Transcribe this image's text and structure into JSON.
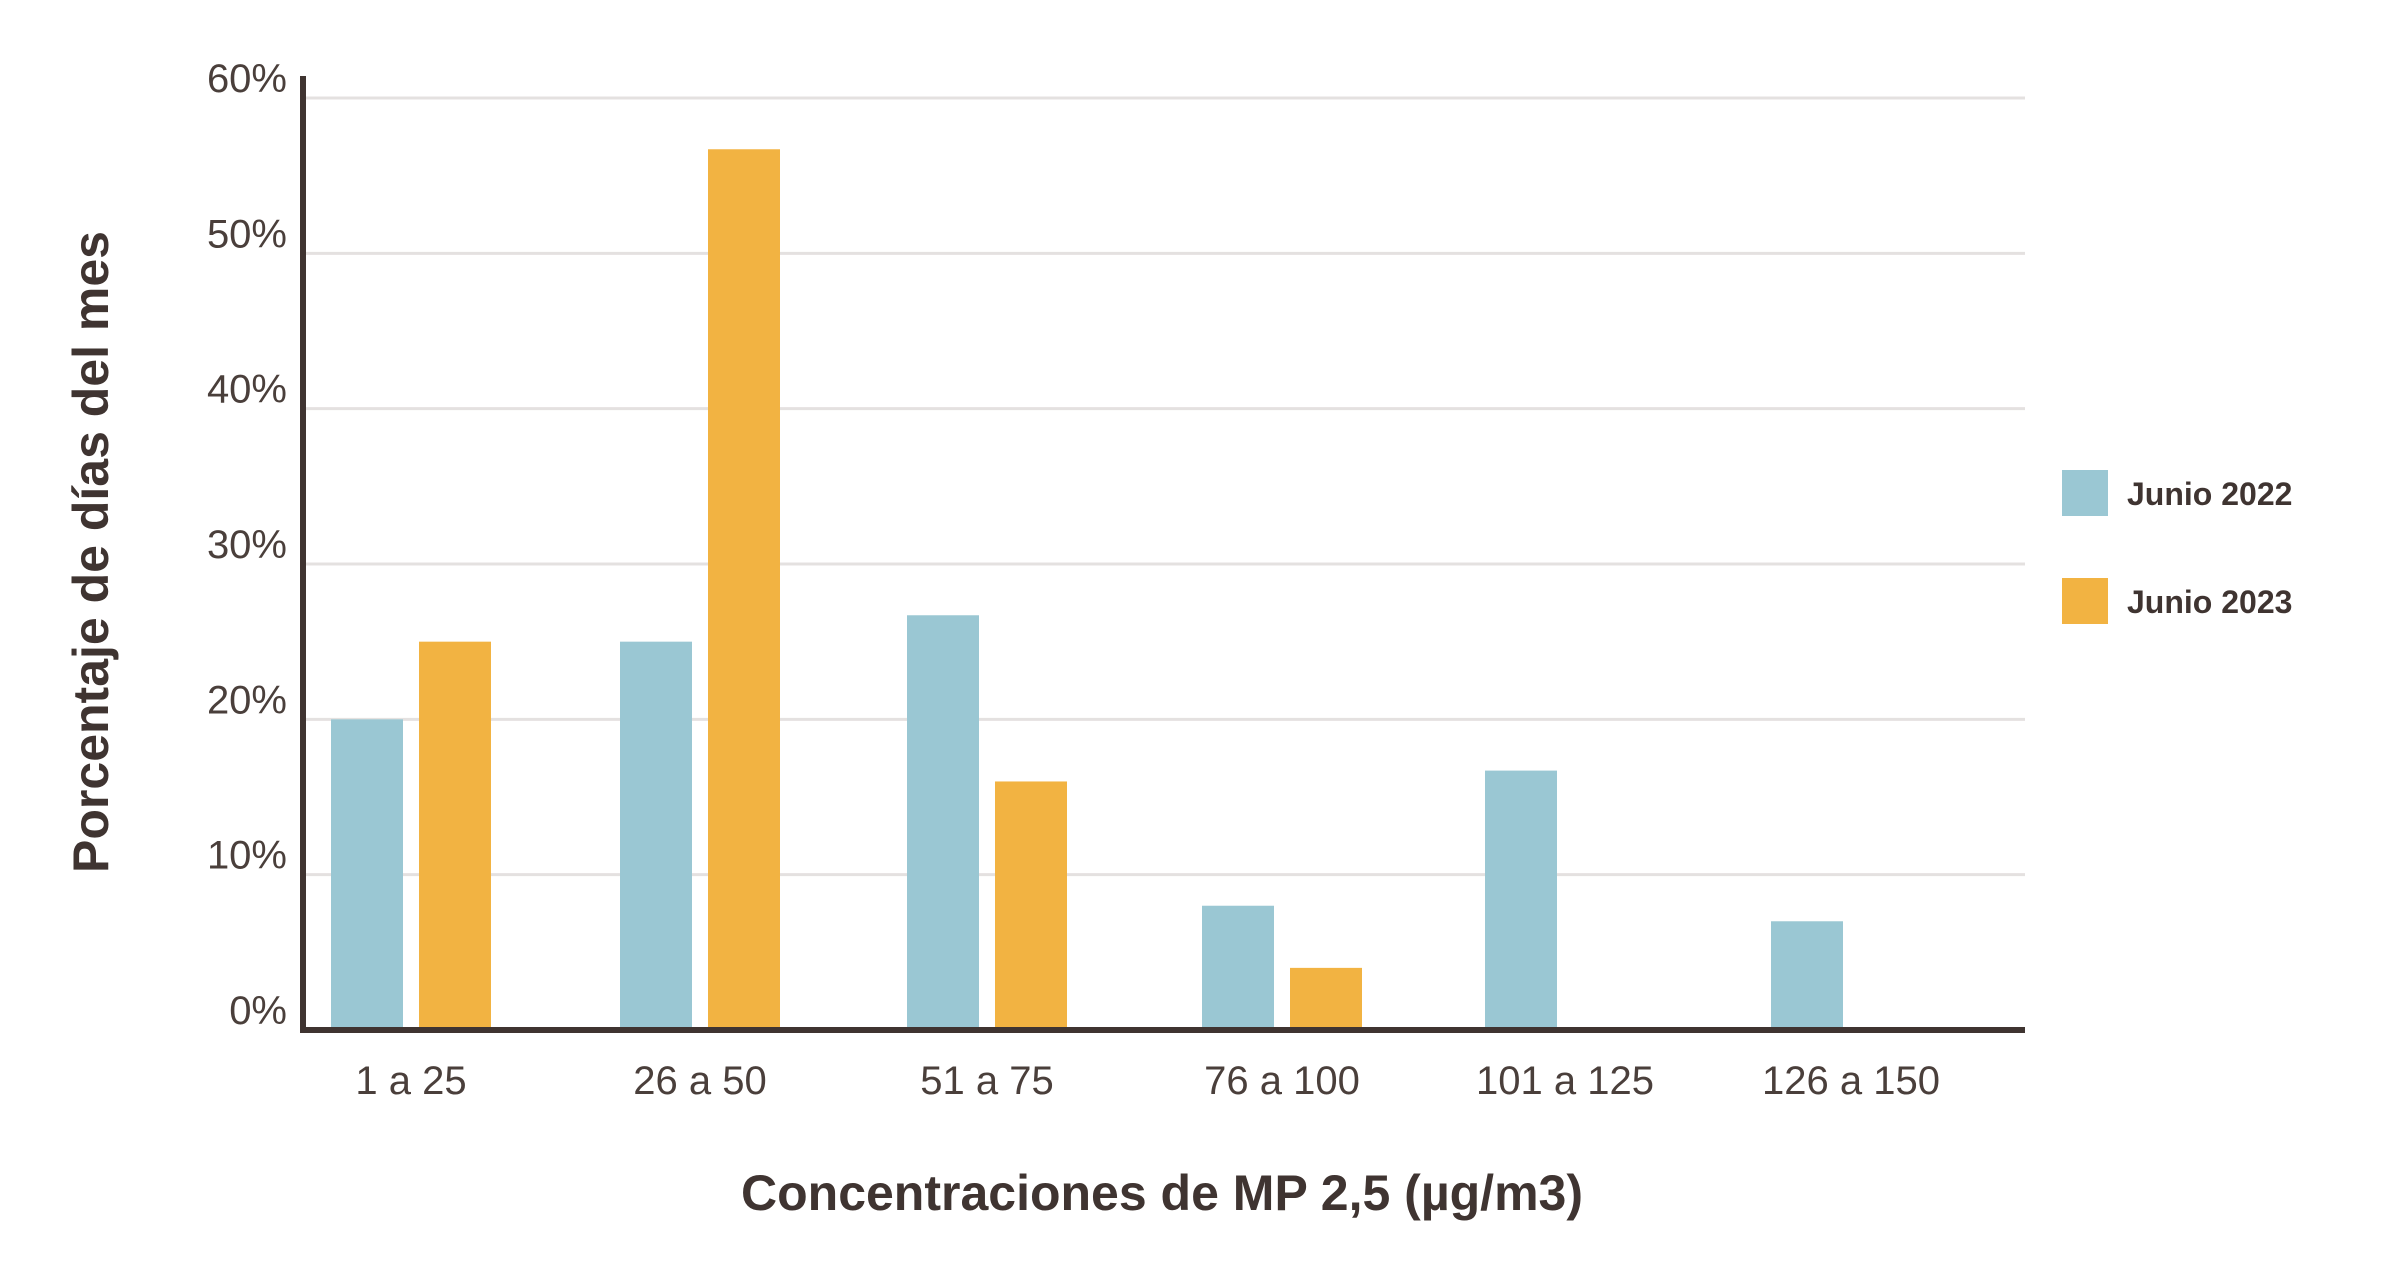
{
  "chart_data": {
    "type": "bar",
    "title": "",
    "xlabel": "Concentraciones de MP 2,5 (µg/m3)",
    "ylabel": "Porcentaje de días del mes",
    "categories": [
      "1 a 25",
      "26 a 50",
      "51 a 75",
      "76 a 100",
      "101 a 125",
      "126 a 150"
    ],
    "series": [
      {
        "name": "Junio 2022",
        "color": "#9ac7d3",
        "values": [
          20,
          25,
          26.7,
          8,
          16.7,
          7
        ]
      },
      {
        "name": "Junio 2023",
        "color": "#f2b342",
        "values": [
          25,
          56.7,
          16,
          4,
          0,
          0
        ]
      }
    ],
    "ylim": [
      0,
      60
    ],
    "yticks": [
      0,
      10,
      20,
      30,
      40,
      50,
      60
    ],
    "ytick_labels": [
      "0%",
      "10%",
      "20%",
      "30%",
      "40%",
      "50%",
      "60%"
    ],
    "grid": true,
    "legend_position": "right"
  }
}
